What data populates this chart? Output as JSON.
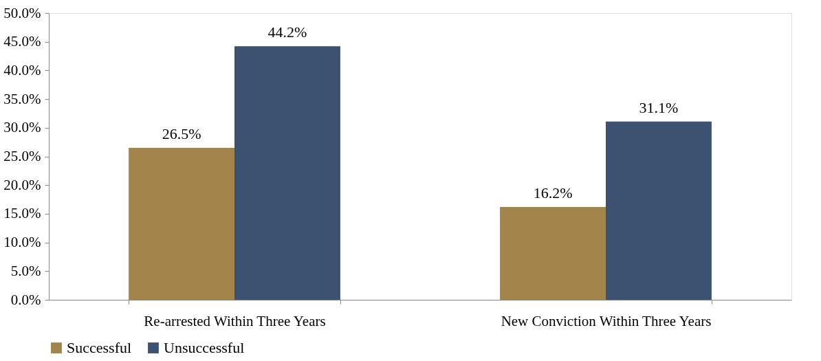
{
  "chart_data": {
    "type": "bar",
    "categories": [
      "Re-arrested Within Three Years",
      "New Conviction Within Three Years"
    ],
    "series": [
      {
        "name": "Successful",
        "color": "#a3844a",
        "values": [
          26.5,
          16.2
        ],
        "value_labels": [
          "26.5%",
          "16.2%"
        ]
      },
      {
        "name": "Unsuccessful",
        "color": "#3d5170",
        "values": [
          44.2,
          31.1
        ],
        "value_labels": [
          "44.2%",
          "31.1%"
        ]
      }
    ],
    "ylim": [
      0,
      50
    ],
    "yticks": [
      {
        "value": 0,
        "label": "0.0%"
      },
      {
        "value": 5,
        "label": "5.0%"
      },
      {
        "value": 10,
        "label": "10.0%"
      },
      {
        "value": 15,
        "label": "15.0%"
      },
      {
        "value": 20,
        "label": "20.0%"
      },
      {
        "value": 25,
        "label": "25.0%"
      },
      {
        "value": 30,
        "label": "30.0%"
      },
      {
        "value": 35,
        "label": "35.0%"
      },
      {
        "value": 40,
        "label": "40.0%"
      },
      {
        "value": 45,
        "label": "45.0%"
      },
      {
        "value": 50,
        "label": "50.0%"
      }
    ],
    "grid": false,
    "legend": "bottom"
  }
}
